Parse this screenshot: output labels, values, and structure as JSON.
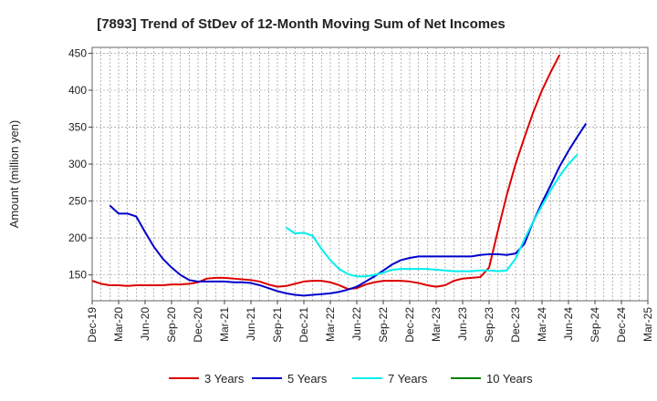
{
  "chart_data": {
    "type": "line",
    "title": "[7893]  Trend of StDev of 12-Month Moving Sum of Net Incomes",
    "xlabel": "",
    "ylabel": "Amount (million yen)",
    "ylim": [
      115,
      458
    ],
    "yticks": [
      150,
      200,
      250,
      300,
      350,
      400,
      450
    ],
    "x_tick_labels": [
      "Dec-19",
      "Mar-20",
      "Jun-20",
      "Sep-20",
      "Dec-20",
      "Mar-21",
      "Jun-21",
      "Sep-21",
      "Dec-21",
      "Mar-22",
      "Jun-22",
      "Sep-22",
      "Dec-22",
      "Mar-23",
      "Jun-23",
      "Sep-23",
      "Dec-23",
      "Mar-24",
      "Jun-24",
      "Sep-24",
      "Dec-24",
      "Mar-25"
    ],
    "grid": true,
    "legend_position": "bottom",
    "series": [
      {
        "name": "3 Years",
        "color": "#dd0000",
        "start_index": 0,
        "values": [
          142,
          138,
          136,
          136,
          135,
          136,
          136,
          136,
          136,
          137,
          137,
          138,
          140,
          145,
          146,
          146,
          145,
          144,
          143,
          141,
          137,
          134,
          135,
          138,
          141,
          142,
          142,
          140,
          136,
          131,
          132,
          137,
          140,
          142,
          142,
          142,
          141,
          139,
          136,
          134,
          136,
          142,
          145,
          146,
          147,
          160,
          210,
          258,
          300,
          336,
          370,
          400,
          425,
          448
        ]
      },
      {
        "name": "5 Years",
        "color": "#0000cc",
        "start_index": 2,
        "values": [
          244,
          233,
          233,
          229,
          208,
          188,
          172,
          160,
          150,
          143,
          141,
          141,
          141,
          141,
          140,
          140,
          139,
          136,
          132,
          128,
          125,
          123,
          122,
          123,
          124,
          125,
          127,
          130,
          134,
          141,
          148,
          156,
          164,
          170,
          173,
          175,
          175,
          175,
          175,
          175,
          175,
          175,
          177,
          178,
          178,
          177,
          179,
          192,
          222,
          248,
          272,
          297,
          318,
          337,
          355
        ]
      },
      {
        "name": "7 Years",
        "color": "#00eeee",
        "start_index": 22,
        "values": [
          214,
          206,
          207,
          203,
          185,
          170,
          158,
          151,
          148,
          148,
          150,
          153,
          157,
          158,
          158,
          158,
          158,
          157,
          156,
          155,
          155,
          155,
          156,
          156,
          155,
          156,
          172,
          198,
          222,
          244,
          265,
          284,
          300,
          313
        ]
      },
      {
        "name": "10 Years",
        "color": "#008000",
        "start_index": 0,
        "values": []
      }
    ]
  }
}
